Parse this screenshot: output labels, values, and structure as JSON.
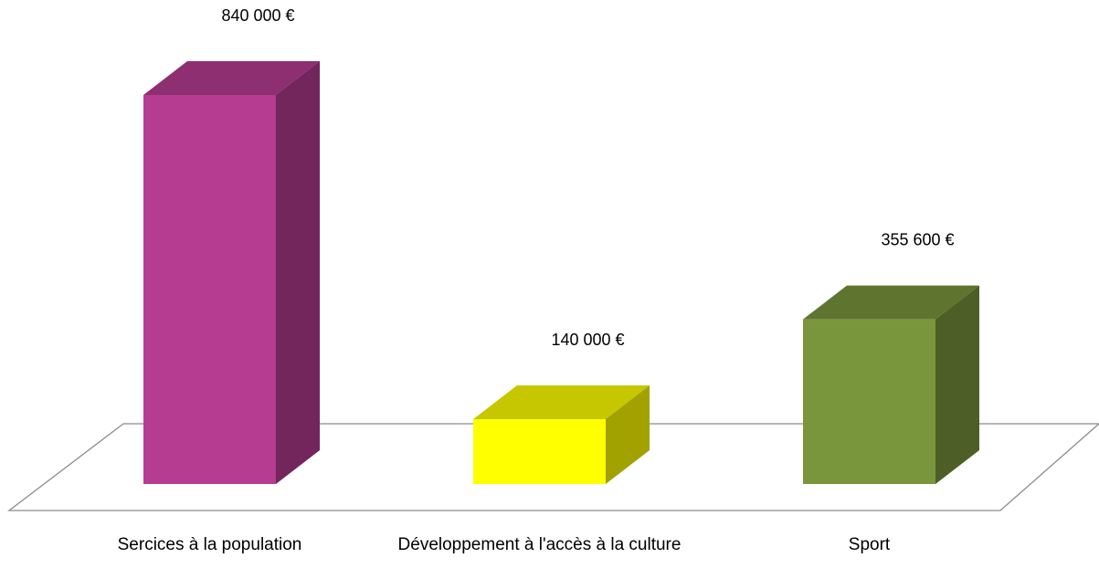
{
  "chart_data": {
    "type": "bar",
    "categories": [
      "Sercices à la population",
      "Développement à l'accès à la culture",
      "Sport"
    ],
    "values": [
      840000,
      140000,
      355600
    ],
    "value_labels": [
      "840 000 €",
      "140 000 €",
      "355 600 €"
    ],
    "colors": [
      "#b53c91",
      "#ffff00",
      "#7a963c"
    ]
  }
}
